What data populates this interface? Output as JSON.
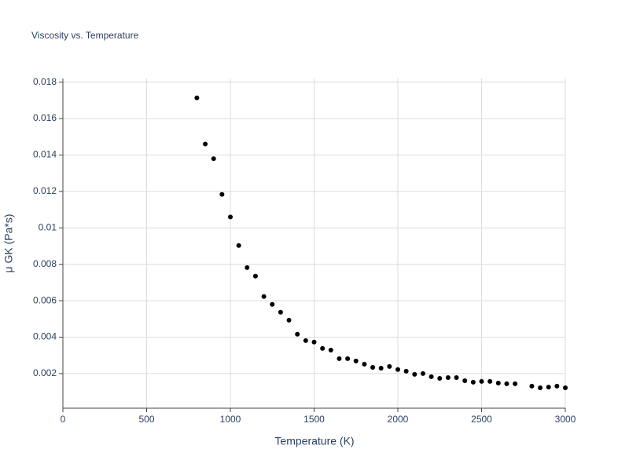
{
  "chart_data": {
    "type": "scatter",
    "title": "Viscosity vs. Temperature",
    "x_label": "Temperature (K)",
    "y_label": "μ GK (Pa*s)",
    "x": [
      800,
      850,
      900,
      950,
      1000,
      1050,
      1100,
      1150,
      1200,
      1250,
      1300,
      1350,
      1400,
      1450,
      1500,
      1550,
      1600,
      1650,
      1700,
      1750,
      1800,
      1850,
      1900,
      1950,
      2000,
      2050,
      2100,
      2150,
      2200,
      2250,
      2300,
      2350,
      2400,
      2450,
      2500,
      2550,
      2600,
      2650,
      2700,
      2800,
      2850,
      2900,
      2950,
      3000
    ],
    "values": [
      0.01714,
      0.0146,
      0.0138,
      0.01184,
      0.0106,
      0.00903,
      0.00782,
      0.00735,
      0.00623,
      0.0058,
      0.00537,
      0.00493,
      0.00416,
      0.00381,
      0.00373,
      0.00338,
      0.00329,
      0.00282,
      0.00282,
      0.00269,
      0.00252,
      0.00234,
      0.0023,
      0.00239,
      0.00222,
      0.00213,
      0.00196,
      0.002,
      0.00183,
      0.00174,
      0.00178,
      0.00178,
      0.00161,
      0.00153,
      0.00157,
      0.00157,
      0.00148,
      0.00144,
      0.00144,
      0.00131,
      0.00122,
      0.00126,
      0.00131,
      0.00122
    ],
    "color": "#000000",
    "xlim": [
      0,
      3000
    ],
    "xticks": [
      0,
      500,
      1000,
      1500,
      2000,
      2500,
      3000
    ],
    "ylim": [
      0.0001,
      0.0182
    ],
    "yticks": [
      0.002,
      0.004,
      0.006,
      0.008,
      0.01,
      0.012,
      0.014,
      0.016,
      0.018
    ],
    "grid": true
  }
}
